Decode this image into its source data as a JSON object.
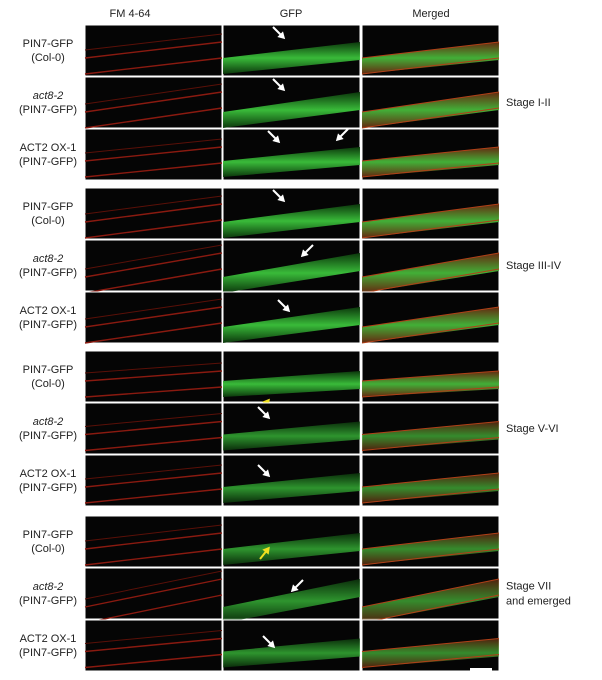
{
  "header": {
    "columns": [
      "FM 4-64",
      "GFP",
      "Merged"
    ]
  },
  "groups": [
    {
      "stage": [
        "Stage I-II"
      ],
      "rows": [
        {
          "line": "PIN7-GFP",
          "background": "(Col-0)"
        },
        {
          "line": "act8-2",
          "background": "(PIN7-GFP)"
        },
        {
          "line": "ACT2 OX-1",
          "background": "(PIN7-GFP)"
        }
      ]
    },
    {
      "stage": [
        "Stage III-IV"
      ],
      "rows": [
        {
          "line": "PIN7-GFP",
          "background": "(Col-0)"
        },
        {
          "line": "act8-2",
          "background": "(PIN7-GFP)"
        },
        {
          "line": "ACT2 OX-1",
          "background": "(PIN7-GFP)"
        }
      ]
    },
    {
      "stage": [
        "Stage V-VI"
      ],
      "rows": [
        {
          "line": "PIN7-GFP",
          "background": "(Col-0)"
        },
        {
          "line": "act8-2",
          "background": "(PIN7-GFP)"
        },
        {
          "line": "ACT2 OX-1",
          "background": "(PIN7-GFP)"
        }
      ]
    },
    {
      "stage": [
        "Stage VII",
        "and emerged"
      ],
      "rows": [
        {
          "line": "PIN7-GFP",
          "background": "(Col-0)"
        },
        {
          "line": "act8-2",
          "background": "(PIN7-GFP)"
        },
        {
          "line": "ACT2 OX-1",
          "background": "(PIN7-GFP)"
        }
      ]
    }
  ]
}
